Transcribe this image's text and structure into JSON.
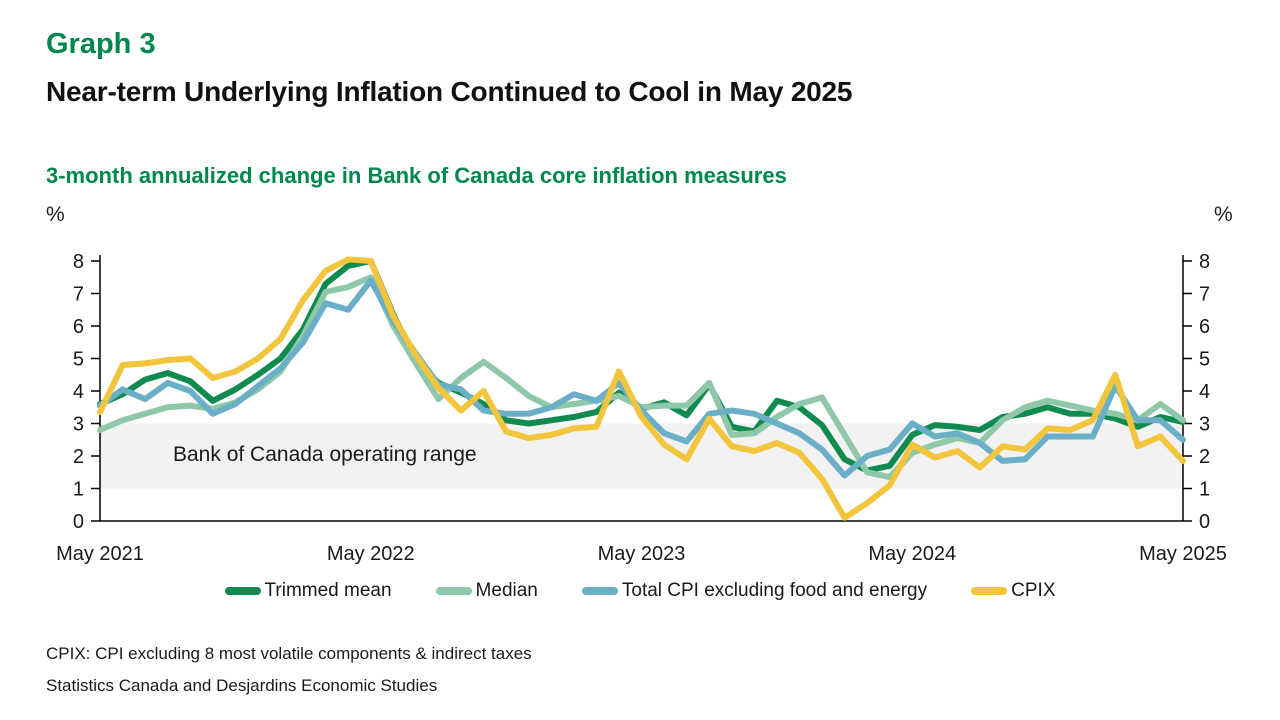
{
  "page": {
    "kicker": "Graph 3",
    "title": "Near-term Underlying Inflation Continued to Cool in May 2025",
    "subtitle": "3-month annualized change in Bank of Canada core inflation measures",
    "unit_left": "%",
    "unit_right": "%",
    "footnotes": {
      "definition": "CPIX: CPI excluding 8 most volatile components & indirect taxes",
      "source": "Statistics Canada and Desjardins Economic Studies"
    },
    "colors": {
      "accent_green": "#00874E",
      "band_gray": "#F2F2F2",
      "axis_black": "#000000"
    }
  },
  "chart_data": {
    "type": "line",
    "title": "3-month annualized change in Bank of Canada core inflation measures",
    "xlabel": "",
    "ylabel": "%",
    "ylim": [
      0,
      8
    ],
    "yticks": [
      0,
      1,
      2,
      3,
      4,
      5,
      6,
      7,
      8
    ],
    "grid": false,
    "legend_position": "bottom",
    "band": {
      "from": 1,
      "to": 3,
      "label": "Bank of Canada operating range",
      "color": "#F2F2F2"
    },
    "x": [
      "May 2021",
      "Jun 2021",
      "Jul 2021",
      "Aug 2021",
      "Sep 2021",
      "Oct 2021",
      "Nov 2021",
      "Dec 2021",
      "Jan 2022",
      "Feb 2022",
      "Mar 2022",
      "Apr 2022",
      "May 2022",
      "Jun 2022",
      "Jul 2022",
      "Aug 2022",
      "Sep 2022",
      "Oct 2022",
      "Nov 2022",
      "Dec 2022",
      "Jan 2023",
      "Feb 2023",
      "Mar 2023",
      "Apr 2023",
      "May 2023",
      "Jun 2023",
      "Jul 2023",
      "Aug 2023",
      "Sep 2023",
      "Oct 2023",
      "Nov 2023",
      "Dec 2023",
      "Jan 2024",
      "Feb 2024",
      "Mar 2024",
      "Apr 2024",
      "May 2024",
      "Jun 2024",
      "Jul 2024",
      "Aug 2024",
      "Sep 2024",
      "Oct 2024",
      "Nov 2024",
      "Dec 2024",
      "Jan 2025",
      "Feb 2025",
      "Mar 2025",
      "Apr 2025",
      "May 2025"
    ],
    "x_axis_ticks": [
      {
        "index": 0,
        "label": "May 2021"
      },
      {
        "index": 12,
        "label": "May 2022"
      },
      {
        "index": 24,
        "label": "May 2023"
      },
      {
        "index": 36,
        "label": "May 2024"
      },
      {
        "index": 48,
        "label": "May 2025"
      }
    ],
    "series": [
      {
        "name": "Trimmed mean",
        "color": "#108A4E",
        "values": [
          3.6,
          3.9,
          4.35,
          4.55,
          4.3,
          3.7,
          4.05,
          4.5,
          5.0,
          5.9,
          7.3,
          7.85,
          8.0,
          6.35,
          4.95,
          4.25,
          3.95,
          3.6,
          3.1,
          3.0,
          3.1,
          3.2,
          3.35,
          3.95,
          3.45,
          3.65,
          3.25,
          4.2,
          2.9,
          2.75,
          3.7,
          3.5,
          2.95,
          1.9,
          1.55,
          1.7,
          2.65,
          2.95,
          2.9,
          2.8,
          3.2,
          3.3,
          3.5,
          3.3,
          3.3,
          3.15,
          2.9,
          3.2,
          3.05
        ]
      },
      {
        "name": "Median",
        "color": "#8FC8A9",
        "values": [
          2.8,
          3.1,
          3.3,
          3.5,
          3.55,
          3.45,
          3.65,
          4.05,
          4.6,
          5.7,
          7.05,
          7.2,
          7.5,
          6.0,
          4.85,
          3.75,
          4.4,
          4.9,
          4.4,
          3.85,
          3.5,
          3.6,
          3.7,
          3.85,
          3.5,
          3.55,
          3.55,
          4.25,
          2.65,
          2.7,
          3.2,
          3.6,
          3.8,
          2.65,
          1.5,
          1.35,
          2.1,
          2.35,
          2.55,
          2.4,
          3.1,
          3.5,
          3.7,
          3.55,
          3.4,
          3.3,
          3.1,
          3.6,
          3.1
        ]
      },
      {
        "name": "Total CPI excluding food and energy",
        "color": "#6AAFC7",
        "values": [
          3.55,
          4.05,
          3.75,
          4.25,
          4.0,
          3.3,
          3.6,
          4.15,
          4.7,
          5.5,
          6.7,
          6.5,
          7.4,
          6.15,
          5.15,
          4.2,
          4.05,
          3.4,
          3.3,
          3.3,
          3.5,
          3.9,
          3.7,
          4.25,
          3.4,
          2.7,
          2.45,
          3.3,
          3.4,
          3.3,
          3.0,
          2.7,
          2.2,
          1.4,
          2.0,
          2.2,
          3.0,
          2.6,
          2.7,
          2.4,
          1.85,
          1.9,
          2.6,
          2.6,
          2.6,
          4.15,
          3.1,
          3.1,
          2.5
        ]
      },
      {
        "name": "CPIX",
        "color": "#F2C53C",
        "values": [
          3.35,
          4.8,
          4.85,
          4.95,
          5.0,
          4.4,
          4.6,
          5.0,
          5.6,
          6.8,
          7.7,
          8.05,
          8.0,
          6.3,
          5.1,
          4.1,
          3.4,
          4.0,
          2.75,
          2.55,
          2.65,
          2.85,
          2.9,
          4.6,
          3.2,
          2.35,
          1.9,
          3.15,
          2.3,
          2.15,
          2.4,
          2.1,
          1.3,
          0.1,
          0.55,
          1.1,
          2.35,
          1.95,
          2.15,
          1.65,
          2.3,
          2.2,
          2.85,
          2.8,
          3.1,
          4.5,
          2.3,
          2.6,
          1.85
        ]
      }
    ]
  }
}
